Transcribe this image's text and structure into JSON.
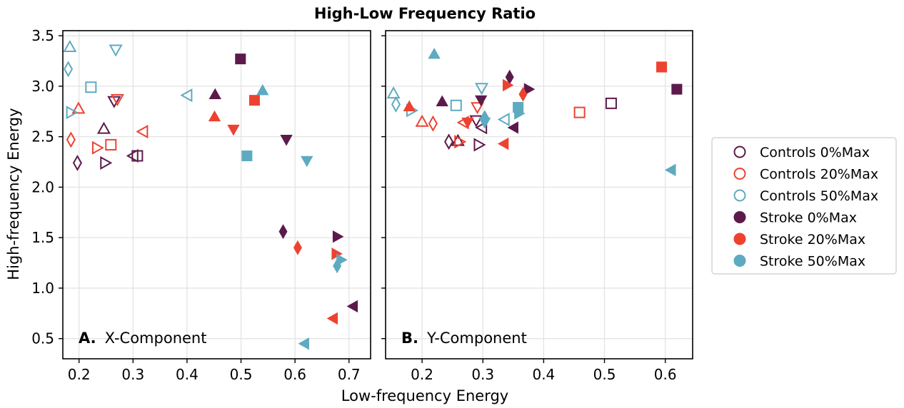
{
  "chart_data": {
    "type": "scatter",
    "title": "High-Low Frequency Ratio",
    "xlabel": "Low-frequency Energy",
    "ylabel": "High-frequency Energy",
    "colors": {
      "c0": "#5c1a4b",
      "c20": "#ee4230",
      "c50": "#5eaac0"
    },
    "legend": {
      "placement": "right",
      "entries": [
        {
          "label": "Controls 0%Max",
          "color": "#5c1a4b",
          "filled": false
        },
        {
          "label": "Controls 20%Max",
          "color": "#ee4230",
          "filled": false
        },
        {
          "label": "Controls 50%Max",
          "color": "#5eaac0",
          "filled": false
        },
        {
          "label": "Stroke 0%Max",
          "color": "#5c1a4b",
          "filled": true
        },
        {
          "label": "Stroke 20%Max",
          "color": "#ee4230",
          "filled": true
        },
        {
          "label": "Stroke 50%Max",
          "color": "#5eaac0",
          "filled": true
        }
      ]
    },
    "panels": [
      {
        "label_letter": "A.",
        "label_text": "X-Component",
        "xlim": [
          0.17,
          0.74
        ],
        "ylim": [
          0.3,
          3.55
        ],
        "xticks": [
          "0.2",
          "0.3",
          "0.4",
          "0.5",
          "0.6",
          "0.7"
        ],
        "yticks": [
          "0.5",
          "1.0",
          "1.5",
          "2.0",
          "2.5",
          "3.0",
          "3.5"
        ],
        "points": [
          {
            "x": 0.246,
            "y": 2.57,
            "m": "tri-up",
            "c": "c0",
            "f": false
          },
          {
            "x": 0.265,
            "y": 2.86,
            "m": "tri-down",
            "c": "c0",
            "f": false
          },
          {
            "x": 0.197,
            "y": 2.24,
            "m": "diamond",
            "c": "c0",
            "f": false
          },
          {
            "x": 0.247,
            "y": 2.24,
            "m": "tri-right",
            "c": "c0",
            "f": false
          },
          {
            "x": 0.302,
            "y": 2.31,
            "m": "tri-left",
            "c": "c0",
            "f": false
          },
          {
            "x": 0.308,
            "y": 2.31,
            "m": "square",
            "c": "c0",
            "f": false
          },
          {
            "x": 0.199,
            "y": 2.77,
            "m": "tri-up",
            "c": "c20",
            "f": false
          },
          {
            "x": 0.271,
            "y": 2.88,
            "m": "tri-down",
            "c": "c20",
            "f": false
          },
          {
            "x": 0.185,
            "y": 2.47,
            "m": "diamond",
            "c": "c20",
            "f": false
          },
          {
            "x": 0.232,
            "y": 2.39,
            "m": "tri-right",
            "c": "c20",
            "f": false
          },
          {
            "x": 0.32,
            "y": 2.55,
            "m": "tri-left",
            "c": "c20",
            "f": false
          },
          {
            "x": 0.259,
            "y": 2.42,
            "m": "square",
            "c": "c20",
            "f": false
          },
          {
            "x": 0.183,
            "y": 3.38,
            "m": "tri-up",
            "c": "c50",
            "f": false
          },
          {
            "x": 0.268,
            "y": 3.37,
            "m": "tri-down",
            "c": "c50",
            "f": false
          },
          {
            "x": 0.18,
            "y": 3.17,
            "m": "diamond",
            "c": "c50",
            "f": false
          },
          {
            "x": 0.184,
            "y": 2.74,
            "m": "tri-right",
            "c": "c50",
            "f": false
          },
          {
            "x": 0.402,
            "y": 2.91,
            "m": "tri-left",
            "c": "c50",
            "f": false
          },
          {
            "x": 0.222,
            "y": 2.99,
            "m": "square",
            "c": "c50",
            "f": false
          },
          {
            "x": 0.452,
            "y": 2.91,
            "m": "tri-up",
            "c": "c0",
            "f": true
          },
          {
            "x": 0.584,
            "y": 2.48,
            "m": "tri-down",
            "c": "c0",
            "f": true
          },
          {
            "x": 0.578,
            "y": 1.56,
            "m": "diamond",
            "c": "c0",
            "f": true
          },
          {
            "x": 0.677,
            "y": 1.51,
            "m": "tri-right",
            "c": "c0",
            "f": true
          },
          {
            "x": 0.709,
            "y": 0.82,
            "m": "tri-left",
            "c": "c0",
            "f": true
          },
          {
            "x": 0.499,
            "y": 3.27,
            "m": "square",
            "c": "c0",
            "f": true
          },
          {
            "x": 0.451,
            "y": 2.69,
            "m": "tri-up",
            "c": "c20",
            "f": true
          },
          {
            "x": 0.486,
            "y": 2.58,
            "m": "tri-down",
            "c": "c20",
            "f": true
          },
          {
            "x": 0.605,
            "y": 1.4,
            "m": "diamond",
            "c": "c20",
            "f": true
          },
          {
            "x": 0.675,
            "y": 1.34,
            "m": "tri-right",
            "c": "c20",
            "f": true
          },
          {
            "x": 0.672,
            "y": 0.7,
            "m": "tri-left",
            "c": "c20",
            "f": true
          },
          {
            "x": 0.525,
            "y": 2.86,
            "m": "square",
            "c": "c20",
            "f": true
          },
          {
            "x": 0.54,
            "y": 2.95,
            "m": "tri-up",
            "c": "c50",
            "f": true
          },
          {
            "x": 0.622,
            "y": 2.27,
            "m": "tri-down",
            "c": "c50",
            "f": true
          },
          {
            "x": 0.678,
            "y": 1.22,
            "m": "diamond",
            "c": "c50",
            "f": true
          },
          {
            "x": 0.684,
            "y": 1.28,
            "m": "tri-right",
            "c": "c50",
            "f": true
          },
          {
            "x": 0.619,
            "y": 0.45,
            "m": "tri-left",
            "c": "c50",
            "f": true
          },
          {
            "x": 0.511,
            "y": 2.31,
            "m": "square",
            "c": "c50",
            "f": true
          }
        ]
      },
      {
        "label_letter": "B.",
        "label_text": "Y-Component",
        "xlim": [
          0.14,
          0.645
        ],
        "ylim": [
          0.3,
          3.55
        ],
        "xticks": [
          "0.2",
          "0.3",
          "0.4",
          "0.5",
          "0.6"
        ],
        "yticks": [
          "0.5",
          "1.0",
          "1.5",
          "2.0",
          "2.5",
          "3.0",
          "3.5"
        ],
        "points": [
          {
            "x": 0.259,
            "y": 2.45,
            "m": "tri-up",
            "c": "c0",
            "f": false
          },
          {
            "x": 0.289,
            "y": 2.67,
            "m": "tri-down",
            "c": "c0",
            "f": false
          },
          {
            "x": 0.244,
            "y": 2.45,
            "m": "diamond",
            "c": "c0",
            "f": false
          },
          {
            "x": 0.292,
            "y": 2.42,
            "m": "tri-right",
            "c": "c0",
            "f": false
          },
          {
            "x": 0.3,
            "y": 2.59,
            "m": "tri-left",
            "c": "c0",
            "f": false
          },
          {
            "x": 0.511,
            "y": 2.83,
            "m": "square",
            "c": "c0",
            "f": false
          },
          {
            "x": 0.2,
            "y": 2.64,
            "m": "tri-up",
            "c": "c20",
            "f": false
          },
          {
            "x": 0.291,
            "y": 2.8,
            "m": "tri-down",
            "c": "c20",
            "f": false
          },
          {
            "x": 0.218,
            "y": 2.63,
            "m": "diamond",
            "c": "c20",
            "f": false
          },
          {
            "x": 0.26,
            "y": 2.45,
            "m": "tri-right",
            "c": "c20",
            "f": false
          },
          {
            "x": 0.27,
            "y": 2.64,
            "m": "tri-left",
            "c": "c20",
            "f": false
          },
          {
            "x": 0.459,
            "y": 2.74,
            "m": "square",
            "c": "c20",
            "f": false
          },
          {
            "x": 0.153,
            "y": 2.92,
            "m": "tri-up",
            "c": "c50",
            "f": false
          },
          {
            "x": 0.298,
            "y": 2.99,
            "m": "tri-down",
            "c": "c50",
            "f": false
          },
          {
            "x": 0.157,
            "y": 2.82,
            "m": "diamond",
            "c": "c50",
            "f": false
          },
          {
            "x": 0.181,
            "y": 2.76,
            "m": "tri-right",
            "c": "c50",
            "f": false
          },
          {
            "x": 0.337,
            "y": 2.67,
            "m": "tri-left",
            "c": "c50",
            "f": false
          },
          {
            "x": 0.256,
            "y": 2.81,
            "m": "square",
            "c": "c50",
            "f": false
          },
          {
            "x": 0.233,
            "y": 2.84,
            "m": "tri-up",
            "c": "c0",
            "f": true
          },
          {
            "x": 0.297,
            "y": 2.87,
            "m": "tri-down",
            "c": "c0",
            "f": true
          },
          {
            "x": 0.344,
            "y": 3.09,
            "m": "diamond",
            "c": "c0",
            "f": true
          },
          {
            "x": 0.374,
            "y": 2.97,
            "m": "tri-right",
            "c": "c0",
            "f": true
          },
          {
            "x": 0.352,
            "y": 2.59,
            "m": "tri-left",
            "c": "c0",
            "f": true
          },
          {
            "x": 0.619,
            "y": 2.97,
            "m": "square",
            "c": "c0",
            "f": true
          },
          {
            "x": 0.179,
            "y": 2.79,
            "m": "tri-up",
            "c": "c20",
            "f": true
          },
          {
            "x": 0.275,
            "y": 2.65,
            "m": "tri-down",
            "c": "c20",
            "f": true
          },
          {
            "x": 0.366,
            "y": 2.92,
            "m": "diamond",
            "c": "c20",
            "f": true
          },
          {
            "x": 0.339,
            "y": 3.01,
            "m": "tri-right",
            "c": "c20",
            "f": true
          },
          {
            "x": 0.336,
            "y": 2.43,
            "m": "tri-left",
            "c": "c20",
            "f": true
          },
          {
            "x": 0.594,
            "y": 3.19,
            "m": "square",
            "c": "c20",
            "f": true
          },
          {
            "x": 0.22,
            "y": 3.31,
            "m": "tri-up",
            "c": "c50",
            "f": true
          },
          {
            "x": 0.303,
            "y": 2.65,
            "m": "tri-down",
            "c": "c50",
            "f": true
          },
          {
            "x": 0.303,
            "y": 2.69,
            "m": "diamond",
            "c": "c50",
            "f": true
          },
          {
            "x": 0.358,
            "y": 2.73,
            "m": "tri-right",
            "c": "c50",
            "f": true
          },
          {
            "x": 0.611,
            "y": 2.17,
            "m": "tri-left",
            "c": "c50",
            "f": true
          },
          {
            "x": 0.358,
            "y": 2.79,
            "m": "square",
            "c": "c50",
            "f": true
          }
        ]
      }
    ]
  }
}
